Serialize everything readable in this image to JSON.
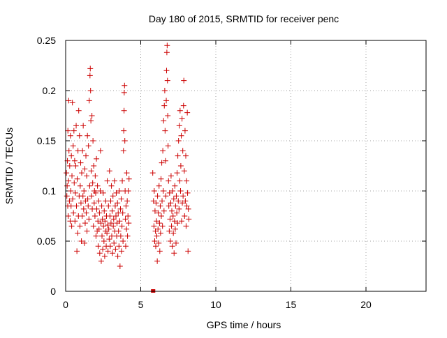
{
  "chart_data": {
    "type": "scatter",
    "title": "Day 180 of 2015, SRMTID for receiver penc",
    "xlabel": "GPS time / hours",
    "ylabel": "SRMTID / TECUs",
    "xlim": [
      0,
      24
    ],
    "ylim": [
      0,
      0.25
    ],
    "x_ticks": [
      0,
      5,
      10,
      15,
      20
    ],
    "x_tick_labels": [
      "0",
      "5",
      "10",
      "15",
      "20"
    ],
    "y_ticks": [
      0,
      0.05,
      0.1,
      0.15,
      0.2,
      0.25
    ],
    "y_tick_labels": [
      "0",
      "0.05",
      "0.1",
      "0.15",
      "0.2",
      "0.25"
    ],
    "grid": true,
    "grid_style": "dotted",
    "marker": "+",
    "color": "#cc0000",
    "series": [
      {
        "points": [
          [
            0.05,
            0.118
          ],
          [
            0.08,
            0.095
          ],
          [
            0.1,
            0.105
          ],
          [
            0.12,
            0.13
          ],
          [
            0.14,
            0.085
          ],
          [
            0.15,
            0.16
          ],
          [
            0.17,
            0.075
          ],
          [
            0.19,
            0.11
          ],
          [
            0.2,
            0.19
          ],
          [
            0.22,
            0.14
          ],
          [
            0.25,
            0.09
          ],
          [
            0.27,
            0.125
          ],
          [
            0.3,
            0.07
          ],
          [
            0.32,
            0.155
          ],
          [
            0.34,
            0.1
          ],
          [
            0.36,
            0.085
          ],
          [
            0.38,
            0.135
          ],
          [
            0.4,
            0.065
          ],
          [
            0.42,
            0.115
          ],
          [
            0.45,
            0.188
          ],
          [
            0.47,
            0.092
          ],
          [
            0.5,
            0.145
          ],
          [
            0.52,
            0.078
          ],
          [
            0.55,
            0.16
          ],
          [
            0.57,
            0.108
          ],
          [
            0.6,
            0.13
          ],
          [
            0.62,
            0.07
          ],
          [
            0.65,
            0.098
          ],
          [
            0.67,
            0.125
          ],
          [
            0.7,
            0.165
          ],
          [
            0.72,
            0.085
          ],
          [
            0.75,
            0.04
          ],
          [
            0.77,
            0.112
          ],
          [
            0.8,
            0.058
          ],
          [
            0.82,
            0.14
          ],
          [
            0.85,
            0.075
          ],
          [
            0.87,
            0.18
          ],
          [
            0.9,
            0.095
          ],
          [
            0.92,
            0.155
          ],
          [
            0.95,
            0.065
          ],
          [
            0.97,
            0.105
          ],
          [
            1.0,
            0.128
          ],
          [
            1.02,
            0.088
          ],
          [
            1.05,
            0.05
          ],
          [
            1.07,
            0.118
          ],
          [
            1.1,
            0.075
          ],
          [
            1.12,
            0.14
          ],
          [
            1.15,
            0.095
          ],
          [
            1.17,
            0.165
          ],
          [
            1.2,
            0.082
          ],
          [
            1.22,
            0.1
          ],
          [
            1.25,
            0.048
          ],
          [
            1.27,
            0.122
          ],
          [
            1.3,
            0.068
          ],
          [
            1.32,
            0.09
          ],
          [
            1.35,
            0.135
          ],
          [
            1.37,
            0.078
          ],
          [
            1.4,
            0.115
          ],
          [
            1.42,
            0.06
          ],
          [
            1.45,
            0.155
          ],
          [
            1.47,
            0.092
          ],
          [
            1.5,
            0.085
          ],
          [
            1.52,
            0.145
          ],
          [
            1.55,
            0.072
          ],
          [
            1.57,
            0.19
          ],
          [
            1.6,
            0.105
          ],
          [
            1.62,
            0.215
          ],
          [
            1.64,
            0.222
          ],
          [
            1.66,
            0.2
          ],
          [
            1.68,
            0.17
          ],
          [
            1.7,
            0.12
          ],
          [
            1.72,
            0.095
          ],
          [
            1.75,
            0.175
          ],
          [
            1.77,
            0.082
          ],
          [
            1.8,
            0.108
          ],
          [
            1.82,
            0.15
          ],
          [
            1.85,
            0.065
          ],
          [
            1.87,
            0.125
          ],
          [
            1.9,
            0.088
          ],
          [
            1.92,
            0.1
          ],
          [
            1.95,
            0.075
          ],
          [
            1.97,
            0.115
          ],
          [
            2.0,
            0.098
          ],
          [
            2.02,
            0.055
          ],
          [
            2.05,
            0.132
          ],
          [
            2.07,
            0.082
          ],
          [
            2.1,
            0.06
          ],
          [
            2.12,
            0.105
          ],
          [
            2.15,
            0.07
          ],
          [
            2.17,
            0.045
          ],
          [
            2.2,
            0.09
          ],
          [
            2.22,
            0.062
          ],
          [
            2.25,
            0.078
          ],
          [
            2.27,
            0.038
          ],
          [
            2.3,
            0.1
          ],
          [
            2.32,
            0.14
          ],
          [
            2.35,
            0.068
          ],
          [
            2.37,
            0.03
          ],
          [
            2.4,
            0.085
          ],
          [
            2.42,
            0.055
          ],
          [
            2.45,
            0.072
          ],
          [
            2.47,
            0.042
          ],
          [
            2.5,
            0.098
          ],
          [
            2.52,
            0.065
          ],
          [
            2.55,
            0.05
          ],
          [
            2.57,
            0.08
          ],
          [
            2.6,
            0.035
          ],
          [
            2.62,
            0.07
          ],
          [
            2.65,
            0.06
          ],
          [
            2.67,
            0.09
          ],
          [
            2.7,
            0.045
          ],
          [
            2.72,
            0.075
          ],
          [
            2.75,
            0.058
          ],
          [
            2.77,
            0.11
          ],
          [
            2.8,
            0.066
          ],
          [
            2.82,
            0.04
          ],
          [
            2.85,
            0.085
          ],
          [
            2.87,
            0.062
          ],
          [
            2.9,
            0.052
          ],
          [
            2.92,
            0.12
          ],
          [
            2.95,
            0.075
          ],
          [
            2.97,
            0.045
          ],
          [
            3.0,
            0.09
          ],
          [
            3.02,
            0.068
          ],
          [
            3.05,
            0.105
          ],
          [
            3.07,
            0.055
          ],
          [
            3.1,
            0.08
          ],
          [
            3.12,
            0.038
          ],
          [
            3.15,
            0.095
          ],
          [
            3.17,
            0.065
          ],
          [
            3.2,
            0.072
          ],
          [
            3.22,
            0.048
          ],
          [
            3.25,
            0.11
          ],
          [
            3.27,
            0.06
          ],
          [
            3.3,
            0.085
          ],
          [
            3.32,
            0.042
          ],
          [
            3.35,
            0.075
          ],
          [
            3.37,
            0.098
          ],
          [
            3.4,
            0.055
          ],
          [
            3.42,
            0.068
          ],
          [
            3.45,
            0.088
          ],
          [
            3.47,
            0.035
          ],
          [
            3.5,
            0.078
          ],
          [
            3.52,
            0.06
          ],
          [
            3.55,
            0.045
          ],
          [
            3.57,
            0.1
          ],
          [
            3.6,
            0.07
          ],
          [
            3.62,
            0.025
          ],
          [
            3.65,
            0.082
          ],
          [
            3.67,
            0.055
          ],
          [
            3.7,
            0.092
          ],
          [
            3.72,
            0.04
          ],
          [
            3.75,
            0.065
          ],
          [
            3.77,
            0.11
          ],
          [
            3.8,
            0.078
          ],
          [
            3.82,
            0.05
          ],
          [
            3.85,
            0.14
          ],
          [
            3.87,
            0.16
          ],
          [
            3.89,
            0.18
          ],
          [
            3.9,
            0.198
          ],
          [
            3.92,
            0.205
          ],
          [
            3.94,
            0.15
          ],
          [
            3.96,
            0.1
          ],
          [
            3.98,
            0.072
          ],
          [
            4.0,
            0.045
          ],
          [
            4.02,
            0.085
          ],
          [
            4.05,
            0.062
          ],
          [
            4.07,
            0.118
          ],
          [
            4.1,
            0.09
          ],
          [
            4.12,
            0.055
          ],
          [
            4.15,
            0.075
          ],
          [
            4.17,
            0.1
          ],
          [
            4.2,
            0.068
          ],
          [
            4.22,
            0.112
          ],
          [
            5.8,
            0.118
          ],
          [
            5.85,
            0.09
          ],
          [
            5.88,
            0.065
          ],
          [
            5.9,
            0.1
          ],
          [
            5.93,
            0.05
          ],
          [
            5.95,
            0.08
          ],
          [
            5.98,
            0.06
          ],
          [
            6.0,
            0.045
          ],
          [
            6.02,
            0.088
          ],
          [
            6.05,
            0.07
          ],
          [
            6.07,
            0.055
          ],
          [
            6.1,
            0.03
          ],
          [
            6.12,
            0.095
          ],
          [
            6.15,
            0.062
          ],
          [
            6.17,
            0.078
          ],
          [
            6.2,
            0.048
          ],
          [
            6.22,
            0.105
          ],
          [
            6.25,
            0.068
          ],
          [
            6.27,
            0.04
          ],
          [
            6.3,
            0.085
          ],
          [
            6.32,
            0.058
          ],
          [
            6.35,
            0.112
          ],
          [
            6.37,
            0.075
          ],
          [
            6.4,
            0.128
          ],
          [
            6.42,
            0.09
          ],
          [
            6.45,
            0.065
          ],
          [
            6.47,
            0.14
          ],
          [
            6.5,
            0.1
          ],
          [
            6.52,
            0.17
          ],
          [
            6.55,
            0.08
          ],
          [
            6.57,
            0.185
          ],
          [
            6.6,
            0.2
          ],
          [
            6.62,
            0.16
          ],
          [
            6.65,
            0.13
          ],
          [
            6.67,
            0.095
          ],
          [
            6.7,
            0.19
          ],
          [
            6.72,
            0.22
          ],
          [
            6.74,
            0.238
          ],
          [
            6.76,
            0.245
          ],
          [
            6.78,
            0.21
          ],
          [
            6.8,
            0.175
          ],
          [
            6.82,
            0.145
          ],
          [
            6.85,
            0.11
          ],
          [
            6.87,
            0.085
          ],
          [
            6.9,
            0.06
          ],
          [
            6.92,
            0.098
          ],
          [
            6.95,
            0.072
          ],
          [
            6.97,
            0.05
          ],
          [
            7.0,
            0.088
          ],
          [
            7.02,
            0.115
          ],
          [
            7.05,
            0.065
          ],
          [
            7.07,
            0.08
          ],
          [
            7.1,
            0.045
          ],
          [
            7.12,
            0.1
          ],
          [
            7.15,
            0.075
          ],
          [
            7.17,
            0.058
          ],
          [
            7.2,
            0.092
          ],
          [
            7.22,
            0.038
          ],
          [
            7.25,
            0.07
          ],
          [
            7.27,
            0.105
          ],
          [
            7.3,
            0.062
          ],
          [
            7.32,
            0.085
          ],
          [
            7.35,
            0.048
          ],
          [
            7.37,
            0.095
          ],
          [
            7.4,
            0.078
          ],
          [
            7.42,
            0.118
          ],
          [
            7.45,
            0.068
          ],
          [
            7.47,
            0.135
          ],
          [
            7.5,
            0.09
          ],
          [
            7.52,
            0.15
          ],
          [
            7.55,
            0.082
          ],
          [
            7.57,
            0.165
          ],
          [
            7.6,
            0.11
          ],
          [
            7.62,
            0.18
          ],
          [
            7.65,
            0.1
          ],
          [
            7.67,
            0.125
          ],
          [
            7.7,
            0.155
          ],
          [
            7.72,
            0.07
          ],
          [
            7.75,
            0.172
          ],
          [
            7.77,
            0.088
          ],
          [
            7.8,
            0.14
          ],
          [
            7.82,
            0.095
          ],
          [
            7.85,
            0.185
          ],
          [
            7.87,
            0.21
          ],
          [
            7.9,
            0.12
          ],
          [
            7.92,
            0.075
          ],
          [
            7.95,
            0.16
          ],
          [
            7.97,
            0.09
          ],
          [
            8.0,
            0.135
          ],
          [
            8.02,
            0.065
          ],
          [
            8.05,
            0.11
          ],
          [
            8.07,
            0.085
          ],
          [
            8.1,
            0.178
          ],
          [
            8.12,
            0.098
          ],
          [
            8.15,
            0.04
          ],
          [
            8.17,
            0.082
          ],
          [
            8.2,
            0.072
          ]
        ]
      },
      {
        "name": "",
        "marker": "square",
        "points": [
          [
            5.8,
            0.0
          ],
          [
            5.85,
            0.0
          ]
        ]
      }
    ]
  }
}
